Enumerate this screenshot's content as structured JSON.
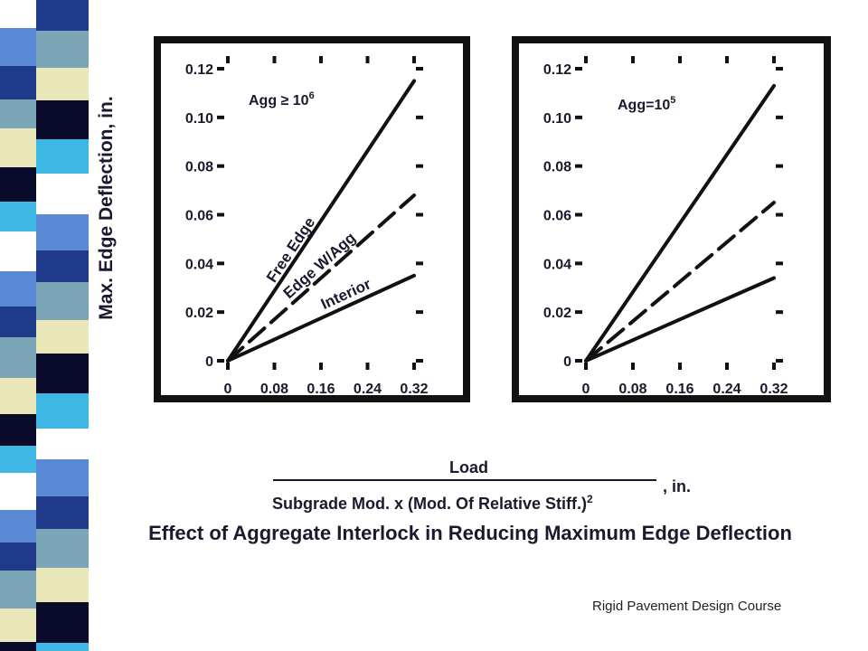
{
  "chart_data": [
    {
      "type": "line",
      "ylabel": "Max. Edge Deflection, in.",
      "annotation": "Agg ≥ 10",
      "annotation_sup": "6",
      "xlim": [
        0,
        0.32
      ],
      "ylim": [
        0,
        0.12
      ],
      "x_ticks": [
        "0",
        "0.08",
        "0.16",
        "0.24",
        "0.32"
      ],
      "y_ticks": [
        "0",
        "0.02",
        "0.04",
        "0.06",
        "0.08",
        "0.10",
        "0.12"
      ],
      "series": [
        {
          "name": "Free Edge",
          "style": "solid",
          "x": [
            0,
            0.32
          ],
          "y": [
            0,
            0.115
          ]
        },
        {
          "name": "Edge W/Agg",
          "style": "dashed",
          "x": [
            0,
            0.32
          ],
          "y": [
            0,
            0.068
          ]
        },
        {
          "name": "Interior",
          "style": "solid",
          "x": [
            0,
            0.32
          ],
          "y": [
            0,
            0.035
          ]
        }
      ]
    },
    {
      "type": "line",
      "annotation": "Agg=10",
      "annotation_sup": "5",
      "xlim": [
        0,
        0.32
      ],
      "ylim": [
        0,
        0.12
      ],
      "x_ticks": [
        "0",
        "0.08",
        "0.16",
        "0.24",
        "0.32"
      ],
      "y_ticks": [
        "0",
        "0.02",
        "0.04",
        "0.06",
        "0.08",
        "0.10",
        "0.12"
      ],
      "series": [
        {
          "style": "solid",
          "x": [
            0,
            0.32
          ],
          "y": [
            0,
            0.113
          ]
        },
        {
          "style": "dashed",
          "x": [
            0,
            0.32
          ],
          "y": [
            0,
            0.065
          ]
        },
        {
          "style": "solid",
          "x": [
            0,
            0.32
          ],
          "y": [
            0,
            0.034
          ]
        }
      ]
    }
  ],
  "xaxis": {
    "numerator": "Load",
    "unit": ", in.",
    "denominator": "Subgrade Mod. x (Mod. Of Relative Stiff.)",
    "denominator_sup": "2"
  },
  "caption": "Effect of Aggregate Interlock in Reducing Maximum Edge Deflection",
  "footer": "Rigid Pavement Design Course",
  "colors": {
    "text": "#1a1a2e",
    "frame": "#111111"
  }
}
